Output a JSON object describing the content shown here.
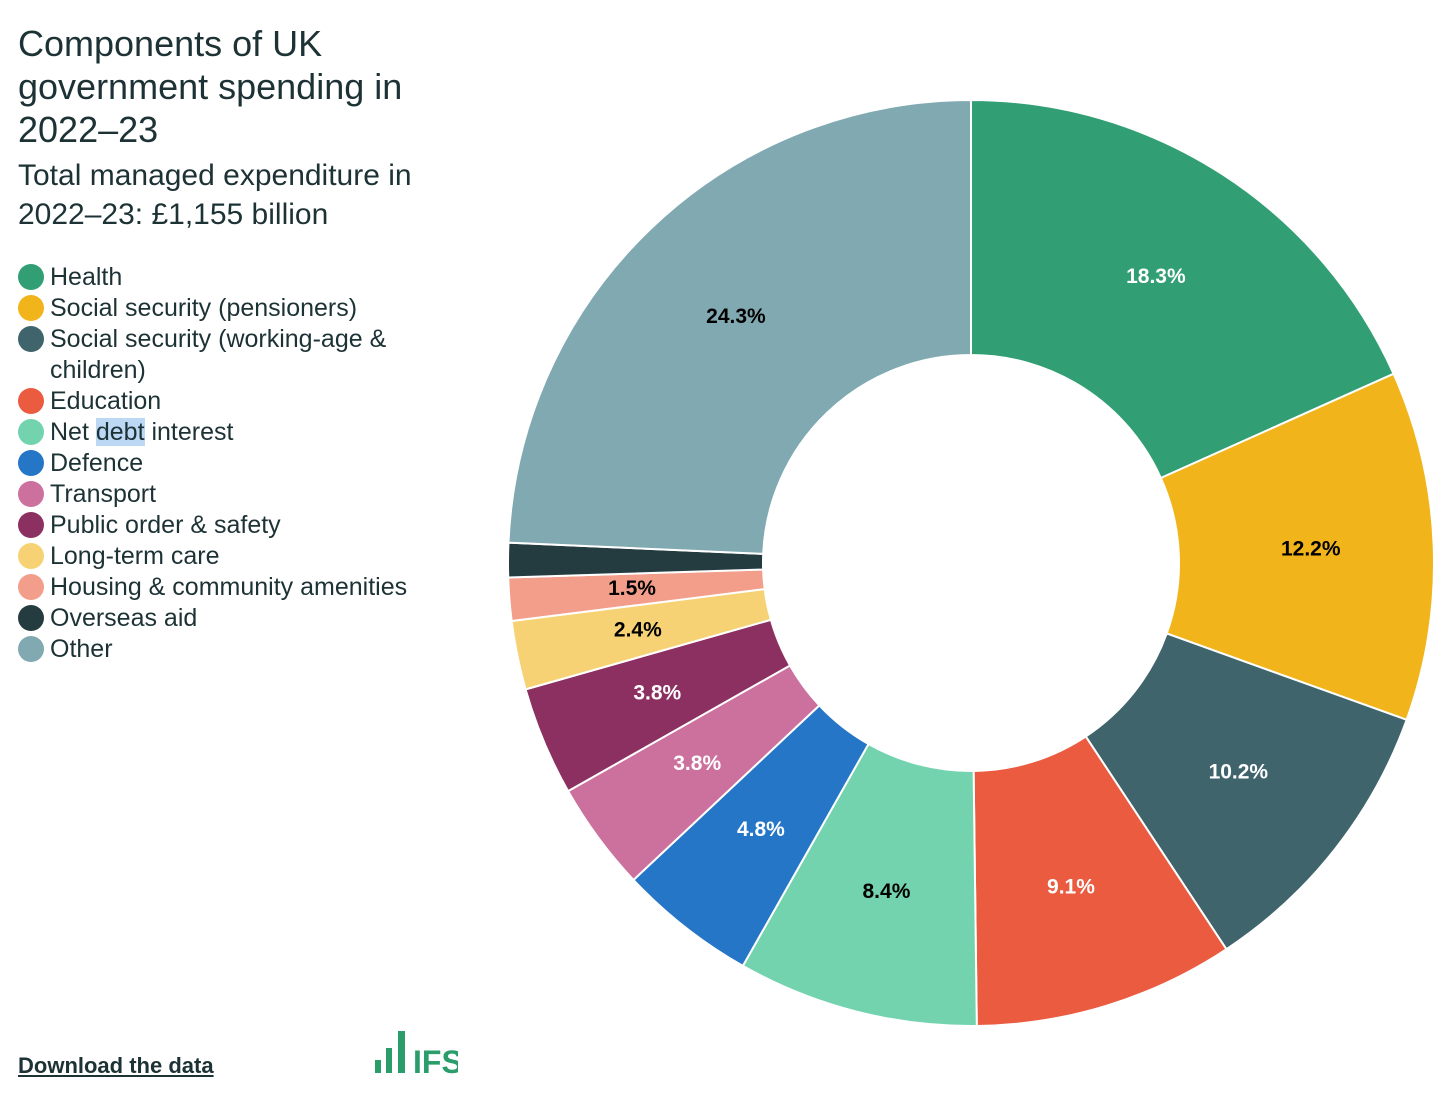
{
  "chart_data": {
    "type": "pie",
    "variant": "donut",
    "title": "Components of UK government spending in 2022–23",
    "subtitle": "Total managed expenditure in 2022–23: £1,155 billion",
    "unit": "%",
    "legend_position": "left",
    "slices": [
      {
        "name": "Health",
        "value": 18.3,
        "label": "18.3%",
        "color": "#319e74",
        "label_color": "#ffffff"
      },
      {
        "name": "Social security (pensioners)",
        "value": 12.2,
        "label": "12.2%",
        "color": "#f2b41b",
        "label_color": "#000000"
      },
      {
        "name": "Social security (working-age & children)",
        "value": 10.2,
        "label": "10.2%",
        "color": "#3f646c",
        "label_color": "#ffffff"
      },
      {
        "name": "Education",
        "value": 9.1,
        "label": "9.1%",
        "color": "#ea5b40",
        "label_color": "#ffffff"
      },
      {
        "name": "Net debt interest",
        "value": 8.4,
        "label": "8.4%",
        "color": "#73d3ae",
        "label_color": "#000000"
      },
      {
        "name": "Defence",
        "value": 4.8,
        "label": "4.8%",
        "color": "#2676c8",
        "label_color": "#ffffff"
      },
      {
        "name": "Transport",
        "value": 3.8,
        "label": "3.8%",
        "color": "#cc709e",
        "label_color": "#ffffff"
      },
      {
        "name": "Public order & safety",
        "value": 3.8,
        "label": "3.8%",
        "color": "#8b3060",
        "label_color": "#ffffff"
      },
      {
        "name": "Long-term care",
        "value": 2.4,
        "label": "2.4%",
        "color": "#f6d274",
        "label_color": "#000000"
      },
      {
        "name": "Housing & community amenities",
        "value": 1.5,
        "label": "1.5%",
        "color": "#f29e8b",
        "label_color": "#000000"
      },
      {
        "name": "Overseas aid",
        "value": 1.2,
        "label": "",
        "color": "#243c40",
        "label_color": "#ffffff"
      },
      {
        "name": "Other",
        "value": 24.3,
        "label": "24.3%",
        "color": "#80a9b1",
        "label_color": "#000000"
      }
    ]
  },
  "footer": {
    "download_label": "Download the data",
    "logo_text": "IFS"
  },
  "colors": {
    "logo": "#2a9d6a",
    "text": "#1d3235"
  }
}
